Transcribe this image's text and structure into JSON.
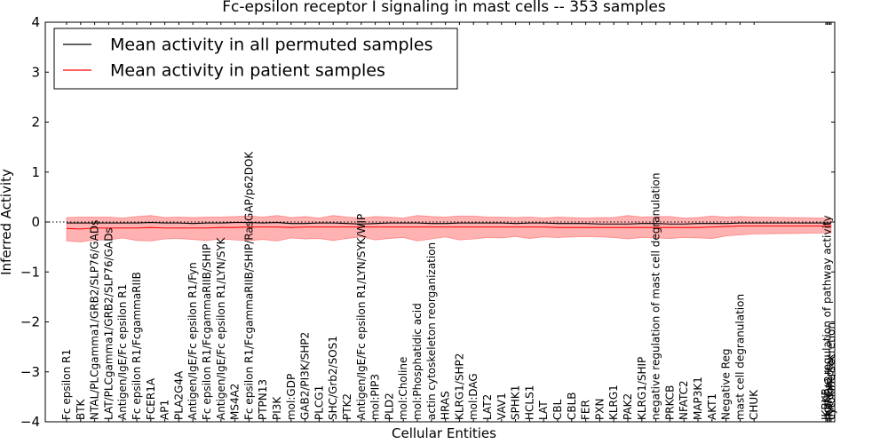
{
  "chart_data": {
    "type": "line",
    "title": "Fc-epsilon receptor I signaling in mast cells -- 353 samples",
    "xlabel": "Cellular Entities",
    "ylabel": "Inferred Activity",
    "ylim": [
      -4,
      4
    ],
    "yticks": [
      -4,
      -3,
      -2,
      -1,
      0,
      1,
      2,
      3,
      4
    ],
    "ytick_labels": [
      "−4",
      "−3",
      "−2",
      "−1",
      "0",
      "1",
      "2",
      "3",
      "4"
    ],
    "reference_line": 0,
    "legend_position": "top-left",
    "categories": [
      "Fc epsilon R1",
      "BTK",
      "NTAL/PLCgamma1/GRB2/SLP76/GADs",
      "LAT/PLCgamma1/GRB2/SLP76/GADs",
      "Antigen/IgE/Fc epsilon R1",
      "Fc epsilon R1/FcgammaRIIB",
      "FCER1A",
      "AP1",
      "PLA2G4A",
      "Antigen/IgE/Fc epsilon R1/Fyn",
      "Fc epsilon R1/FcgammaRIIB/SHIP",
      "Antigen/IgE/Fc epsilon R1/LYN/SYK",
      "MS4A2",
      "Fc epsilon R1/FcgammaRIIB/SHIP/RasGAP/p62DOK",
      "PTPN13",
      "PI3K",
      "mol:GDP",
      "GAB2/PI3K/SHP2",
      "PLCG1",
      "SHC/Grb2/SOS1",
      "PTK2",
      "Antigen/IgE/Fc epsilon R1/LYN/SYK/WIP",
      "mol:PIP3",
      "PLD2",
      "mol:Choline",
      "mol:Phosphatidic acid",
      "actin cytoskeleton reorganization",
      "HRAS",
      "KLRG1/SHP2",
      "mol:DAG",
      "LAT2",
      "VAV1",
      "SPHK1",
      "HCLS1",
      "LAT",
      "CBL",
      "CBLB",
      "FER",
      "PXN",
      "KLRG1",
      "PAK2",
      "KLRG1/SHIP",
      "negative regulation of mast cell degranulation",
      "PRKCB",
      "NFATC2",
      "MAP3K1",
      "AKT1",
      "Negative Reg",
      "mast cell degranulation",
      "CHUK",
      "IKBKB",
      "positive regulation of pathway activity",
      "mol:Ca2+",
      "IKK complex",
      "cytokine secretion"
    ],
    "series": [
      {
        "name": "Mean activity in all permuted samples",
        "color": "#000000",
        "values": [
          -0.02,
          -0.02,
          -0.02,
          -0.02,
          -0.02,
          -0.02,
          -0.01,
          -0.02,
          -0.02,
          -0.03,
          -0.02,
          -0.02,
          -0.01,
          -0.01,
          -0.02,
          -0.01,
          -0.03,
          -0.03,
          -0.02,
          -0.02,
          -0.03,
          -0.04,
          -0.03,
          -0.02,
          -0.02,
          -0.02,
          -0.03,
          -0.03,
          -0.02,
          -0.02,
          -0.02,
          -0.02,
          -0.03,
          -0.02,
          -0.02,
          -0.03,
          -0.03,
          -0.03,
          -0.04,
          -0.04,
          -0.04,
          -0.03,
          -0.03,
          -0.04,
          -0.04,
          -0.03,
          -0.03,
          -0.03,
          -0.02,
          -0.02,
          -0.02,
          -0.02,
          -0.02,
          -0.02,
          -0.02
        ]
      },
      {
        "name": "Mean activity in patient samples",
        "color": "#ff0000",
        "values": [
          -0.13,
          -0.14,
          -0.12,
          -0.12,
          -0.12,
          -0.12,
          -0.11,
          -0.12,
          -0.12,
          -0.12,
          -0.12,
          -0.11,
          -0.11,
          -0.1,
          -0.1,
          -0.1,
          -0.11,
          -0.1,
          -0.1,
          -0.1,
          -0.1,
          -0.1,
          -0.1,
          -0.1,
          -0.1,
          -0.1,
          -0.1,
          -0.1,
          -0.1,
          -0.1,
          -0.1,
          -0.1,
          -0.1,
          -0.1,
          -0.1,
          -0.11,
          -0.11,
          -0.11,
          -0.11,
          -0.11,
          -0.11,
          -0.11,
          -0.11,
          -0.11,
          -0.11,
          -0.11,
          -0.1,
          -0.09,
          -0.08,
          -0.08,
          -0.08,
          -0.08,
          -0.08,
          -0.08,
          -0.07
        ],
        "band_upper": [
          0.09,
          0.1,
          0.1,
          0.1,
          0.08,
          0.11,
          0.13,
          0.09,
          0.1,
          0.09,
          0.1,
          0.1,
          0.11,
          0.12,
          0.1,
          0.13,
          0.09,
          0.11,
          0.08,
          0.13,
          0.1,
          0.08,
          0.11,
          0.1,
          0.08,
          0.13,
          0.11,
          0.1,
          0.12,
          0.12,
          0.1,
          0.1,
          0.09,
          0.1,
          0.08,
          0.1,
          0.09,
          0.08,
          0.09,
          0.09,
          0.13,
          0.1,
          0.11,
          0.11,
          0.08,
          0.09,
          0.12,
          0.1,
          0.11,
          0.1,
          0.08,
          0.07,
          0.07,
          0.07,
          0.07
        ],
        "band_lower": [
          -0.38,
          -0.4,
          -0.36,
          -0.36,
          -0.32,
          -0.37,
          -0.38,
          -0.34,
          -0.33,
          -0.35,
          -0.37,
          -0.34,
          -0.36,
          -0.37,
          -0.35,
          -0.38,
          -0.32,
          -0.34,
          -0.33,
          -0.37,
          -0.33,
          -0.3,
          -0.36,
          -0.33,
          -0.31,
          -0.38,
          -0.34,
          -0.3,
          -0.36,
          -0.34,
          -0.31,
          -0.32,
          -0.29,
          -0.33,
          -0.3,
          -0.31,
          -0.3,
          -0.29,
          -0.3,
          -0.31,
          -0.34,
          -0.31,
          -0.32,
          -0.33,
          -0.31,
          -0.32,
          -0.33,
          -0.28,
          -0.26,
          -0.24,
          -0.22,
          -0.22,
          -0.22,
          -0.22,
          -0.22
        ]
      }
    ]
  }
}
